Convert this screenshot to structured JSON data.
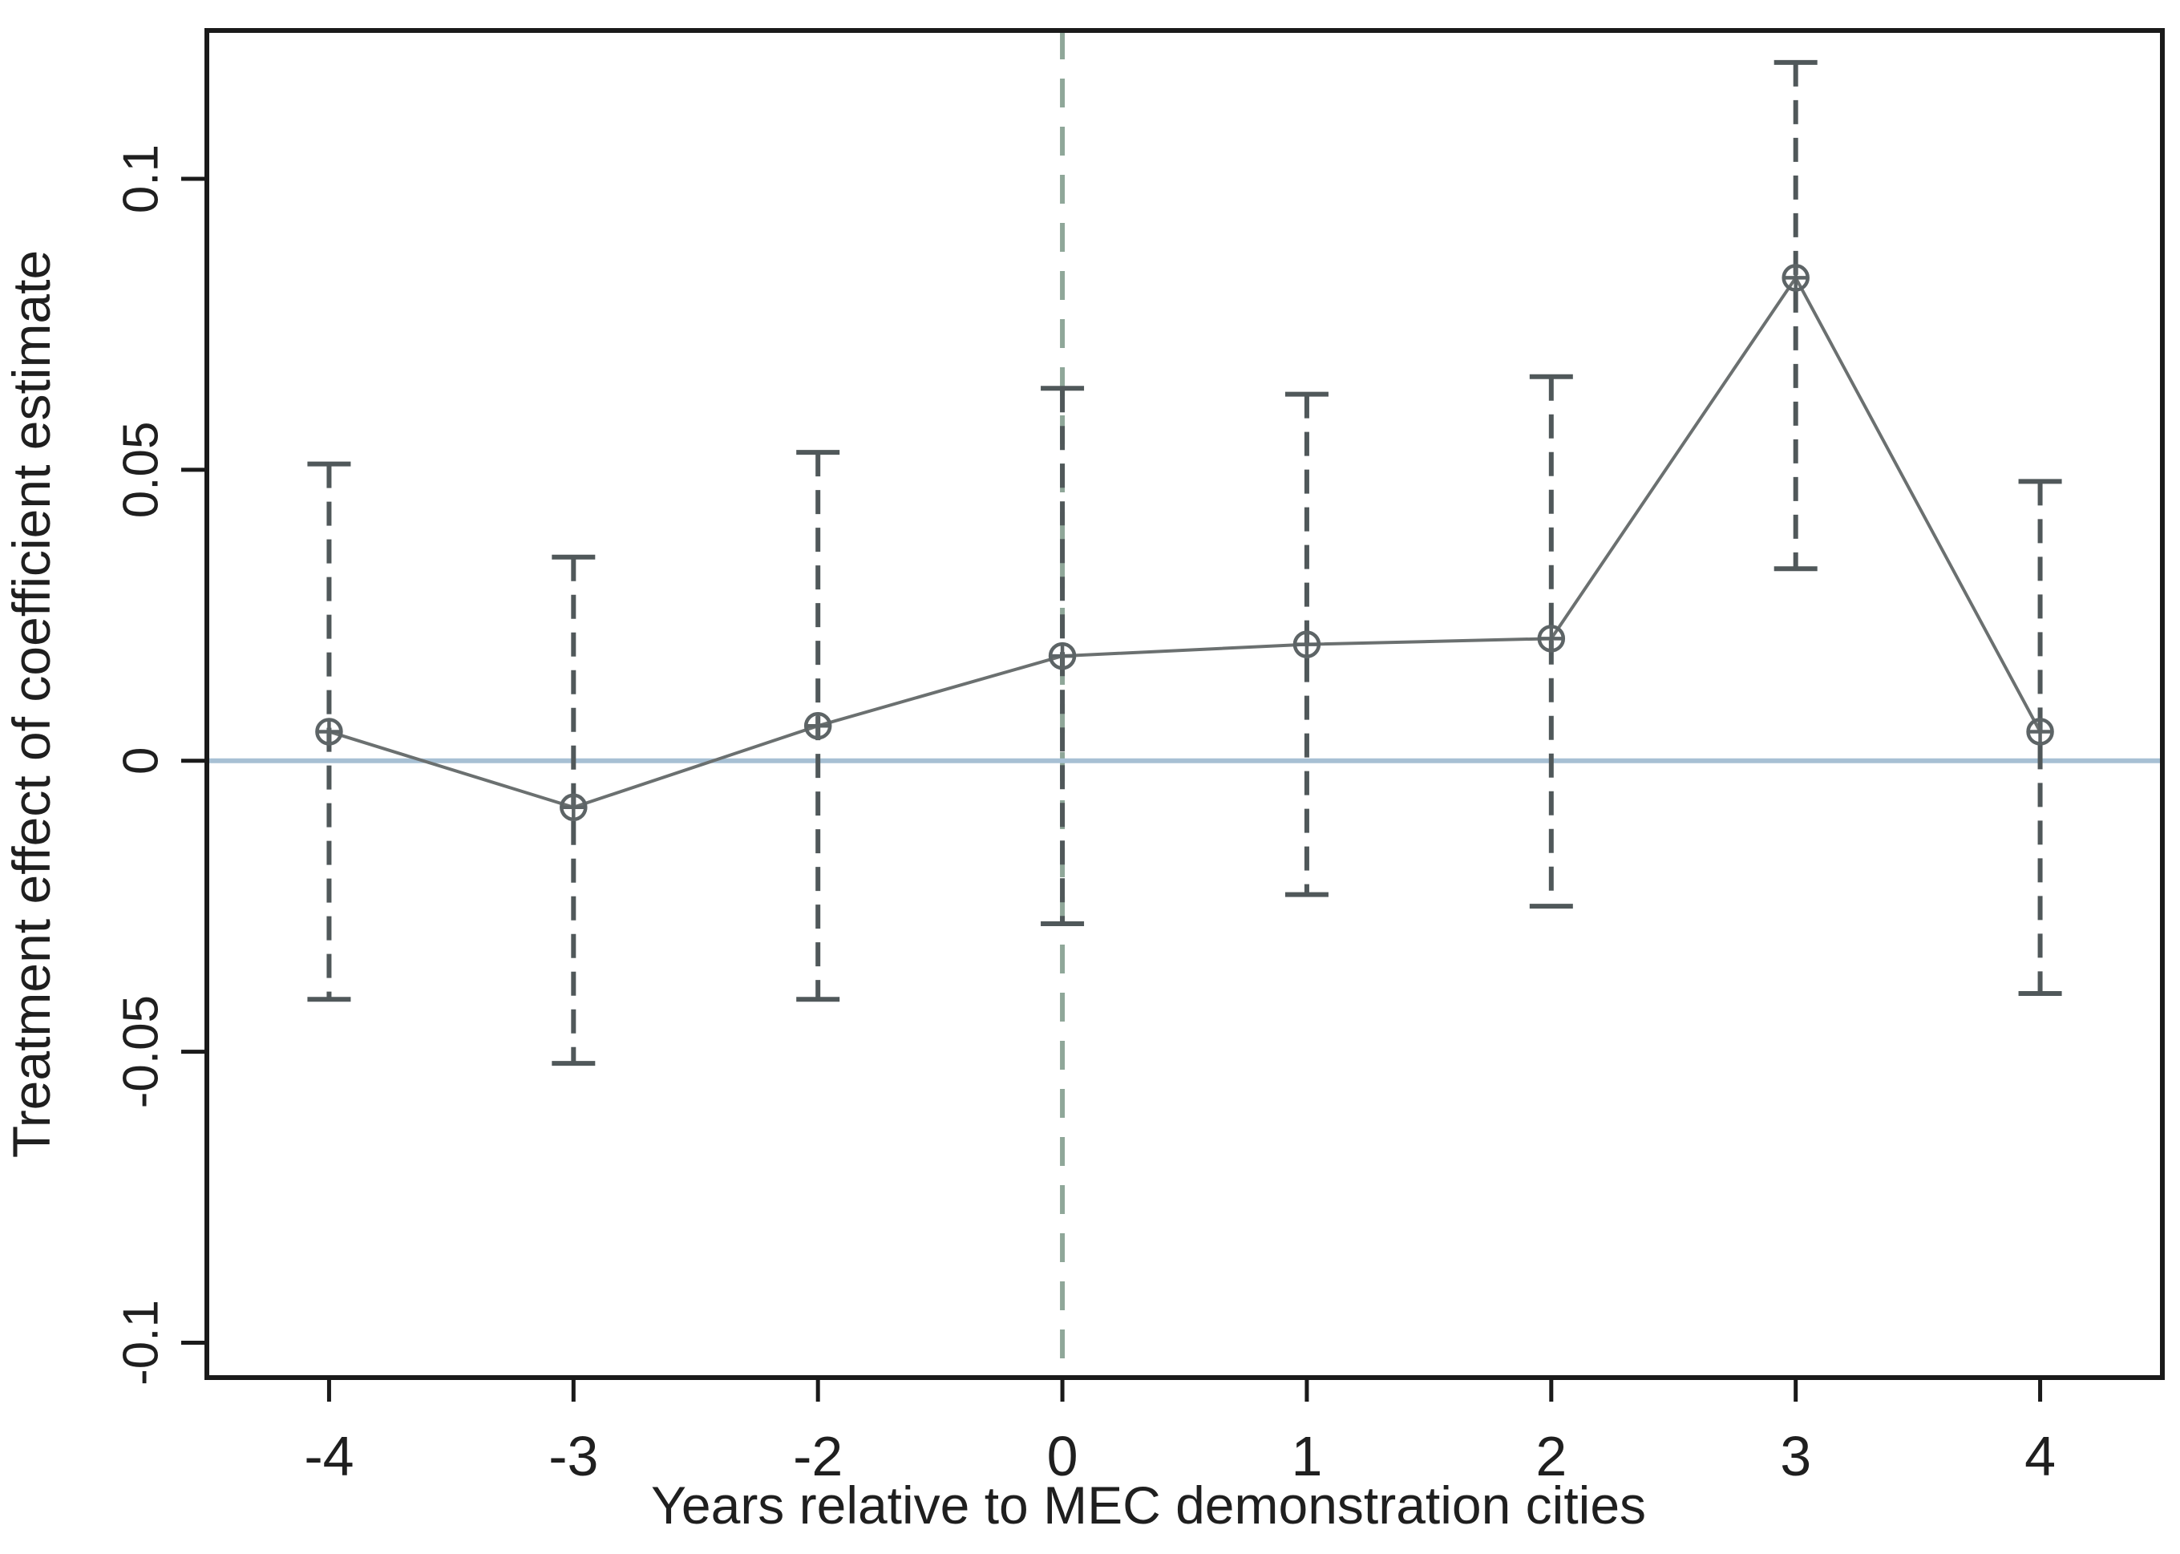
{
  "figure": {
    "background": "#ffffff"
  },
  "chart_data": {
    "type": "line",
    "subtype": "event-study point estimates with dashed confidence-interval error bars",
    "title": "",
    "xlabel": "Years relative to MEC demonstration cities",
    "ylabel": "Treatment effect of coefficient estimate",
    "categories": [
      "-4",
      "-3",
      "-2",
      "0",
      "1",
      "2",
      "3",
      "4"
    ],
    "series": [
      {
        "name": "coefficient estimate",
        "values": [
          0.005,
          -0.008,
          0.006,
          0.018,
          0.02,
          0.021,
          0.083,
          0.005
        ]
      }
    ],
    "ci_low": [
      -0.041,
      -0.052,
      -0.041,
      -0.028,
      -0.023,
      -0.025,
      0.033,
      -0.04
    ],
    "ci_high": [
      0.051,
      0.035,
      0.053,
      0.064,
      0.063,
      0.066,
      0.12,
      0.048
    ],
    "yticks": [
      -0.1,
      -0.05,
      0,
      0.05,
      0.1
    ],
    "ytick_labels": [
      "-0.1",
      "-0.05",
      "0",
      "0.05",
      "0.1"
    ],
    "xtick_labels": [
      "-4",
      "-3",
      "-2",
      "0",
      "1",
      "2",
      "3",
      "4"
    ],
    "ylim": [
      -0.106,
      0.1255
    ],
    "grid": false,
    "legend": "none",
    "zero_reference_line": {
      "y": 0,
      "color": "#a7c0d4",
      "style": "solid"
    },
    "event_reference_line": {
      "x_category": "0",
      "color": "#8fa799",
      "style": "dashed"
    },
    "colors": {
      "series_line": "#6b7070",
      "marker": "#5d6466",
      "error_bar": "#50585a",
      "frame": "#1a1a1a",
      "text": "#1f1f1f"
    },
    "marker_style": "open circle with plus (circle-plus)"
  }
}
